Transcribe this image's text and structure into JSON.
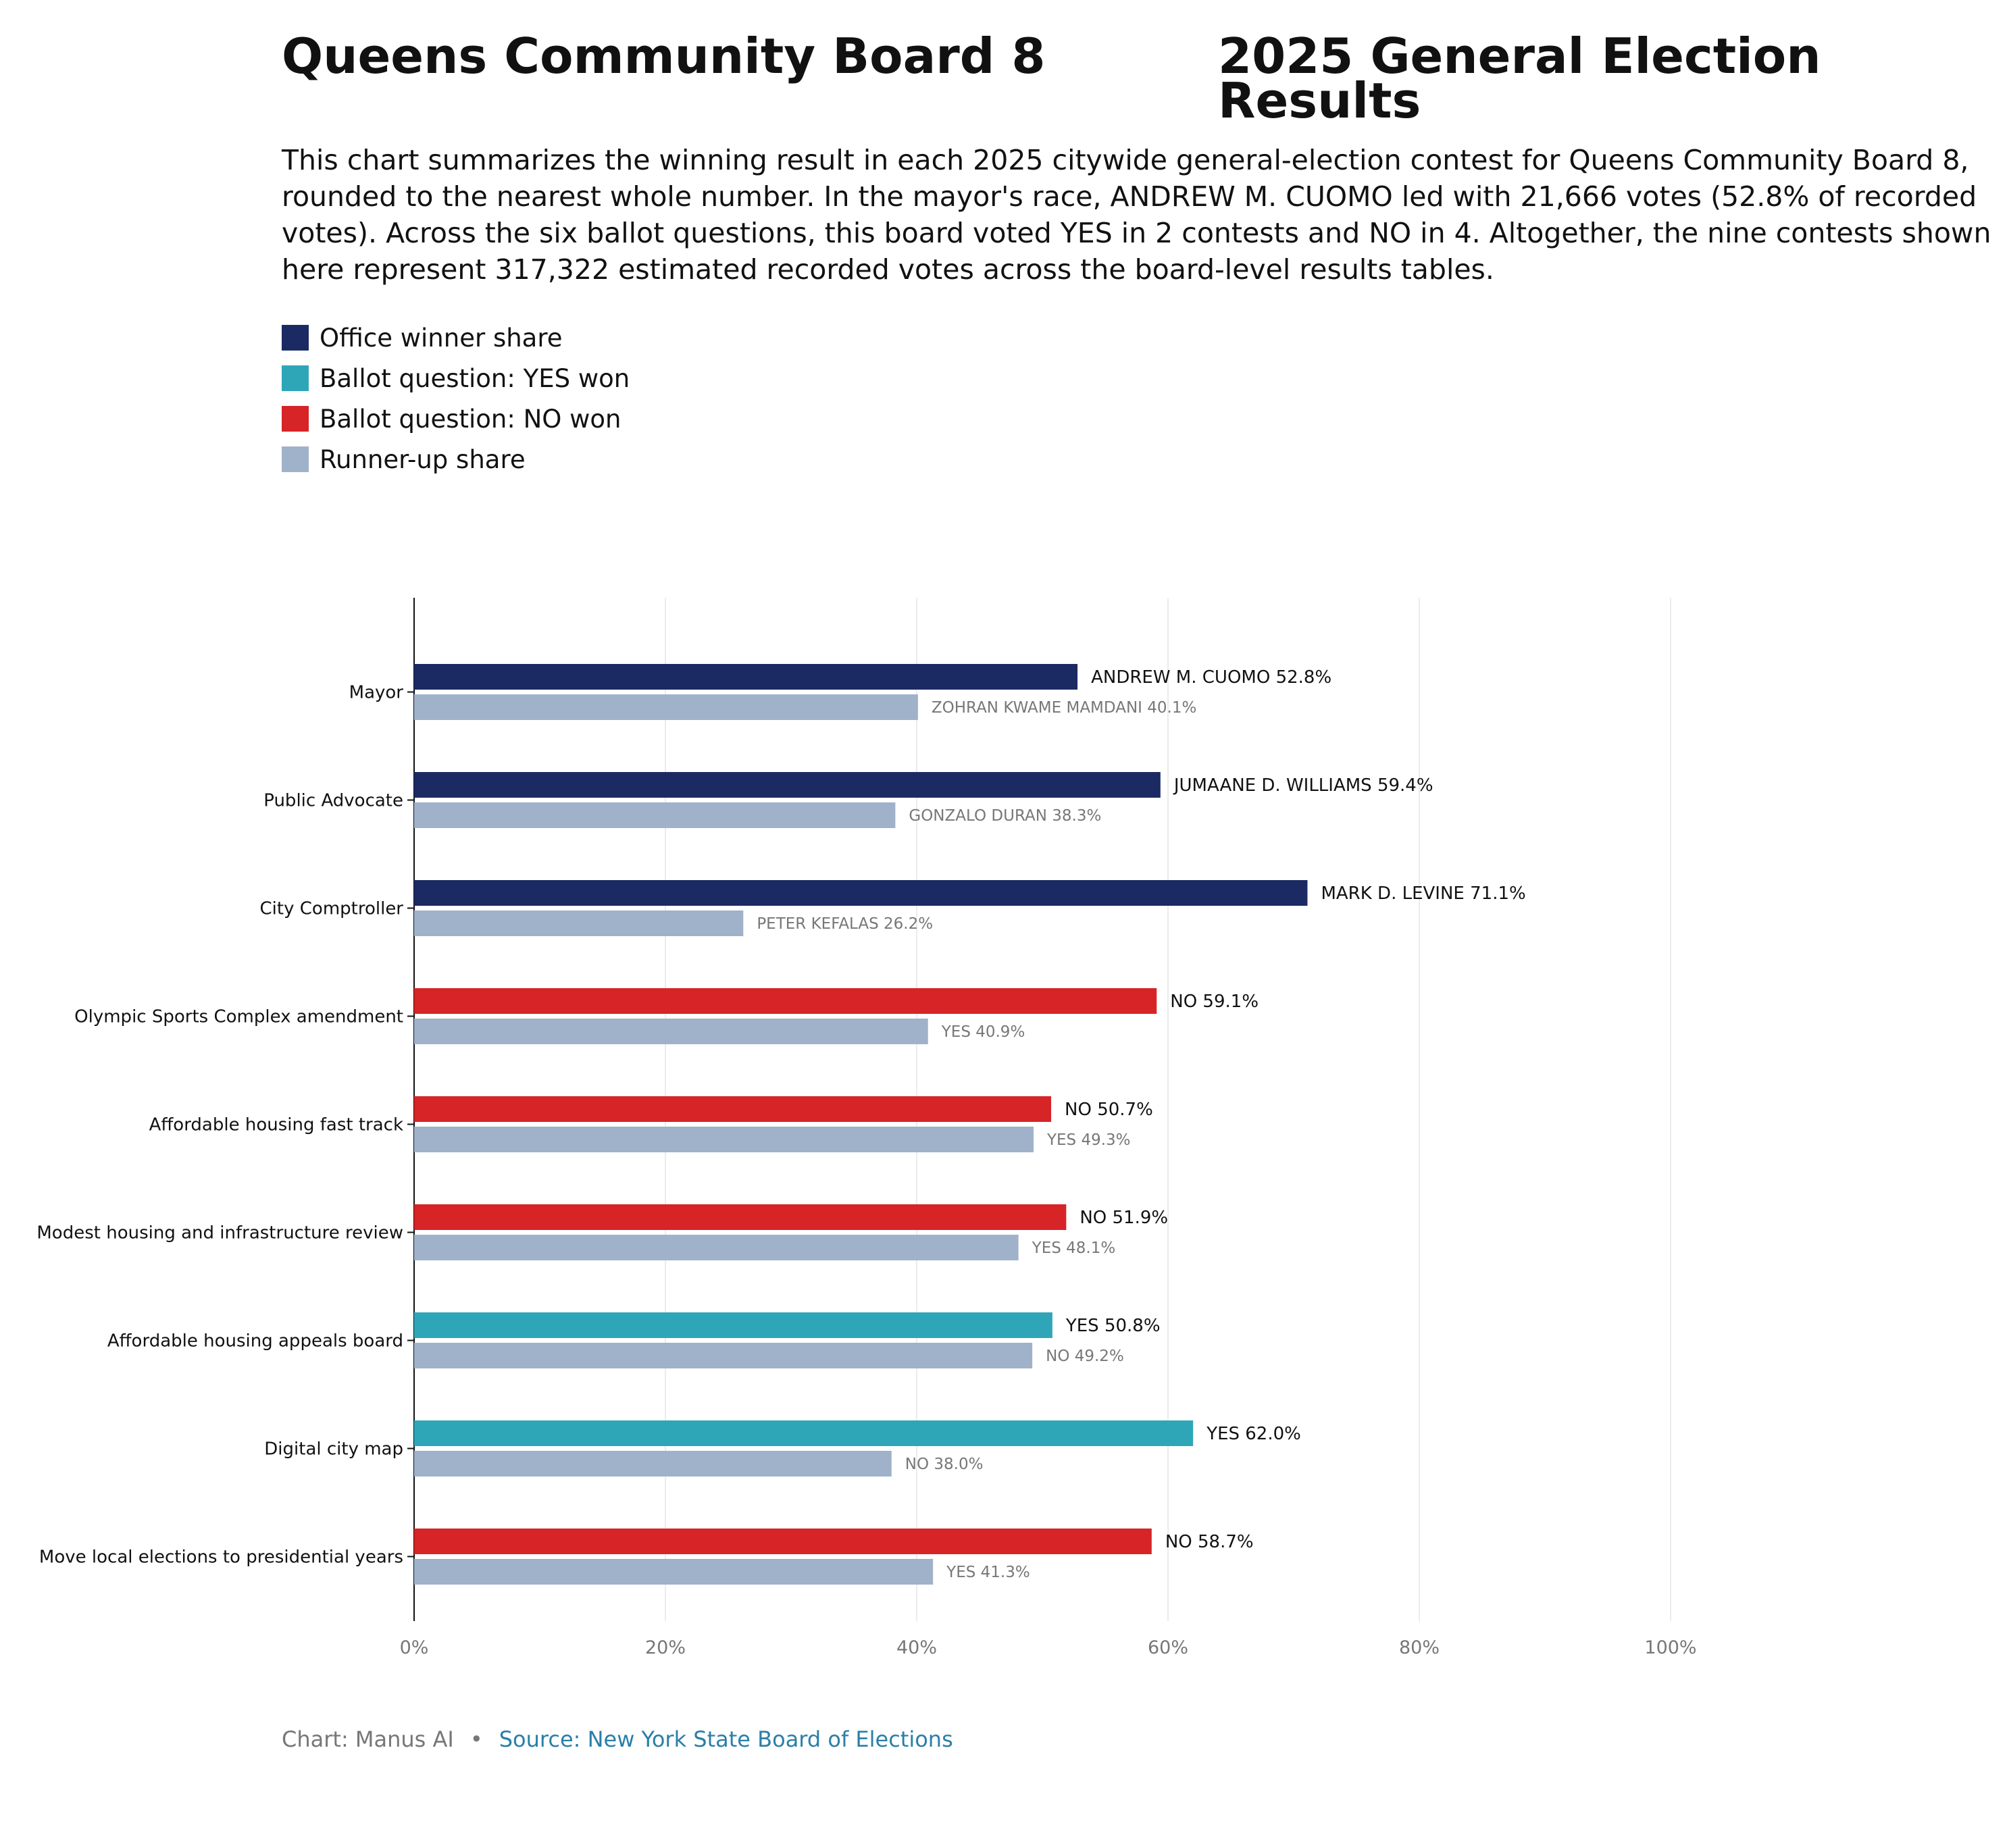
{
  "header": {
    "title_left": "Queens Community Board 8",
    "title_right": "2025 General Election Results",
    "subtitle": "This chart summarizes the winning result in each 2025 citywide general-election contest for Queens Community Board 8, rounded to the nearest whole number. In the mayor's race, ANDREW M. CUOMO led with 21,666 votes (52.8% of recorded votes). Across the six ballot questions, this board voted YES in 2 contests and NO in 4. Altogether, the nine contests shown here represent 317,322 estimated recorded votes across the board-level results tables."
  },
  "legend": [
    {
      "label": "Office winner share",
      "color": "#1b2a63"
    },
    {
      "label": "Ballot question: YES won",
      "color": "#2fa6b8"
    },
    {
      "label": "Ballot question: NO won",
      "color": "#d62427"
    },
    {
      "label": "Runner-up share",
      "color": "#9fb2c9"
    }
  ],
  "footer": {
    "credit": "Chart: Manus AI",
    "separator": "•",
    "source": "Source: New York State Board of Elections"
  },
  "chart_data": {
    "type": "bar",
    "orientation": "horizontal",
    "xlim": [
      0,
      100
    ],
    "x_ticks": [
      "0%",
      "20%",
      "40%",
      "60%",
      "80%",
      "100%"
    ],
    "grid": "vertical",
    "categories": [
      "Mayor",
      "Public Advocate",
      "City Comptroller",
      "Olympic Sports Complex amendment",
      "Affordable housing fast track",
      "Modest housing and infrastructure review",
      "Affordable housing appeals board",
      "Digital city map",
      "Move local elections to presidential years"
    ],
    "series": [
      {
        "name": "Winner",
        "values": [
          52.8,
          59.4,
          71.1,
          59.1,
          50.7,
          51.9,
          50.8,
          62.0,
          58.7
        ],
        "labels": [
          "ANDREW M. CUOMO 52.8%",
          "JUMAANE D. WILLIAMS 59.4%",
          "MARK D. LEVINE 71.1%",
          "NO 59.1%",
          "NO 50.7%",
          "NO 51.9%",
          "YES 50.8%",
          "YES 62.0%",
          "NO 58.7%"
        ],
        "colors": [
          "#1b2a63",
          "#1b2a63",
          "#1b2a63",
          "#d62427",
          "#d62427",
          "#d62427",
          "#2fa6b8",
          "#2fa6b8",
          "#d62427"
        ]
      },
      {
        "name": "Runner-up",
        "values": [
          40.1,
          38.3,
          26.2,
          40.9,
          49.3,
          48.1,
          49.2,
          38.0,
          41.3
        ],
        "labels": [
          "ZOHRAN KWAME MAMDANI 40.1%",
          "GONZALO DURAN 38.3%",
          "PETER KEFALAS 26.2%",
          "YES 40.9%",
          "YES 49.3%",
          "YES 48.1%",
          "NO 49.2%",
          "NO 38.0%",
          "YES 41.3%"
        ],
        "color": "#9fb2c9"
      }
    ]
  }
}
